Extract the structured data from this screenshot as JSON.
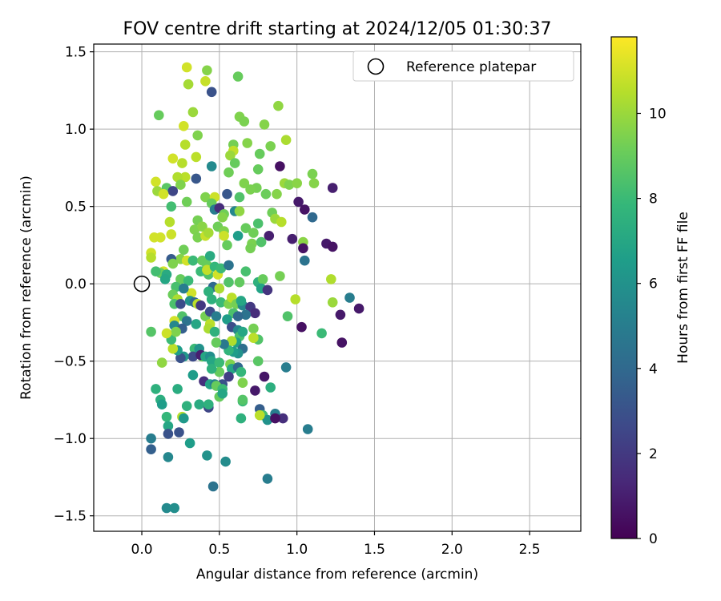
{
  "chart_data": {
    "type": "scatter",
    "title": "FOV centre drift starting at 2024/12/05 01:30:37",
    "xlabel": "Angular distance from reference (arcmin)",
    "ylabel": "Rotation from reference (arcmin)",
    "xlim": [
      -0.31,
      2.83
    ],
    "ylim": [
      -1.6,
      1.55
    ],
    "xticks": [
      0.0,
      0.5,
      1.0,
      1.5,
      2.0,
      2.5
    ],
    "xtick_labels": [
      "0.0",
      "0.5",
      "1.0",
      "1.5",
      "2.0",
      "2.5"
    ],
    "yticks": [
      -1.5,
      -1.0,
      -0.5,
      0.0,
      0.5,
      1.0,
      1.5
    ],
    "ytick_labels": [
      "−1.5",
      "−1.0",
      "−0.5",
      "0.0",
      "0.5",
      "1.0",
      "1.5"
    ],
    "grid": true,
    "legend": {
      "position": "top-right",
      "entries": [
        "Reference platepar"
      ]
    },
    "reference_point": {
      "x": 0.0,
      "y": 0.0,
      "marker": "open-circle"
    },
    "colorbar": {
      "label": "Hours from first FF file",
      "range": [
        0,
        11.8
      ],
      "ticks": [
        0,
        2,
        4,
        6,
        8,
        10
      ],
      "tick_labels": [
        "0",
        "2",
        "4",
        "6",
        "8",
        "10"
      ],
      "colormap": [
        "#440154",
        "#482878",
        "#3e4989",
        "#31688e",
        "#26828e",
        "#1f9e89",
        "#35b779",
        "#6ece58",
        "#b5de2b",
        "#fde725"
      ]
    },
    "points": [
      [
        0.29,
        1.4,
        11
      ],
      [
        0.42,
        1.38,
        9.6
      ],
      [
        0.41,
        1.31,
        10.8
      ],
      [
        0.3,
        1.29,
        10.2
      ],
      [
        0.62,
        1.34,
        9
      ],
      [
        0.45,
        1.24,
        3
      ],
      [
        0.11,
        1.09,
        9
      ],
      [
        0.33,
        1.11,
        10
      ],
      [
        0.88,
        1.15,
        9.8
      ],
      [
        0.63,
        1.08,
        9.5
      ],
      [
        0.66,
        1.05,
        9.4
      ],
      [
        0.79,
        1.03,
        9.6
      ],
      [
        0.27,
        1.02,
        11
      ],
      [
        0.36,
        0.96,
        9.5
      ],
      [
        0.59,
        0.9,
        9.3
      ],
      [
        0.68,
        0.91,
        9.6
      ],
      [
        0.93,
        0.93,
        10.3
      ],
      [
        0.28,
        0.9,
        10.5
      ],
      [
        0.83,
        0.89,
        9.4
      ],
      [
        0.59,
        0.86,
        10.7
      ],
      [
        0.76,
        0.84,
        9
      ],
      [
        0.2,
        0.81,
        11
      ],
      [
        0.35,
        0.82,
        10.6
      ],
      [
        0.26,
        0.78,
        10.5
      ],
      [
        0.57,
        0.83,
        10
      ],
      [
        0.6,
        0.78,
        9
      ],
      [
        0.89,
        0.76,
        0.5
      ],
      [
        0.45,
        0.76,
        5.6
      ],
      [
        0.56,
        0.72,
        9.2
      ],
      [
        0.75,
        0.74,
        9
      ],
      [
        0.28,
        0.69,
        10.6
      ],
      [
        0.09,
        0.66,
        11
      ],
      [
        0.35,
        0.68,
        3.2
      ],
      [
        0.23,
        0.69,
        10.4
      ],
      [
        0.1,
        0.6,
        10
      ],
      [
        0.25,
        0.64,
        9.5
      ],
      [
        0.16,
        0.62,
        8.7
      ],
      [
        0.2,
        0.6,
        2.5
      ],
      [
        0.14,
        0.58,
        11
      ],
      [
        0.55,
        0.58,
        3.2
      ],
      [
        0.41,
        0.56,
        9.5
      ],
      [
        0.47,
        0.56,
        10.9
      ],
      [
        0.45,
        0.52,
        9
      ],
      [
        0.29,
        0.53,
        9.2
      ],
      [
        0.63,
        0.56,
        8.5
      ],
      [
        0.74,
        0.62,
        9.3
      ],
      [
        0.66,
        0.65,
        9.5
      ],
      [
        0.7,
        0.61,
        9.4
      ],
      [
        0.8,
        0.58,
        9.1
      ],
      [
        0.87,
        0.58,
        9.6
      ],
      [
        0.92,
        0.65,
        10
      ],
      [
        0.95,
        0.64,
        9.5
      ],
      [
        1.0,
        0.65,
        9.7
      ],
      [
        1.01,
        0.53,
        0.8
      ],
      [
        1.05,
        0.48,
        0.6
      ],
      [
        1.1,
        0.71,
        9.4
      ],
      [
        1.11,
        0.65,
        9.6
      ],
      [
        1.23,
        0.62,
        1
      ],
      [
        1.1,
        0.43,
        4
      ],
      [
        0.19,
        0.5,
        8.2
      ],
      [
        0.18,
        0.4,
        10.5
      ],
      [
        0.19,
        0.32,
        10.9
      ],
      [
        0.08,
        0.3,
        11
      ],
      [
        0.12,
        0.3,
        11
      ],
      [
        0.06,
        0.2,
        11
      ],
      [
        0.06,
        0.17,
        10.5
      ],
      [
        0.27,
        0.22,
        9.2
      ],
      [
        0.25,
        0.16,
        9.6
      ],
      [
        0.36,
        0.41,
        9.3
      ],
      [
        0.34,
        0.35,
        9.5
      ],
      [
        0.39,
        0.37,
        9.7
      ],
      [
        0.47,
        0.48,
        5
      ],
      [
        0.5,
        0.49,
        1.5
      ],
      [
        0.53,
        0.45,
        9.2
      ],
      [
        0.6,
        0.47,
        5.5
      ],
      [
        0.63,
        0.47,
        9.8
      ],
      [
        0.49,
        0.37,
        9.2
      ],
      [
        0.52,
        0.43,
        9.6
      ],
      [
        0.53,
        0.34,
        9.5
      ],
      [
        0.53,
        0.31,
        10.9
      ],
      [
        0.62,
        0.31,
        6.5
      ],
      [
        0.67,
        0.36,
        9
      ],
      [
        0.72,
        0.33,
        9.2
      ],
      [
        0.75,
        0.39,
        8.4
      ],
      [
        0.84,
        0.46,
        9.2
      ],
      [
        0.86,
        0.42,
        10
      ],
      [
        0.9,
        0.4,
        10.5
      ],
      [
        0.82,
        0.31,
        1
      ],
      [
        0.71,
        0.26,
        9.4
      ],
      [
        0.77,
        0.27,
        8.5
      ],
      [
        0.7,
        0.23,
        9.3
      ],
      [
        0.97,
        0.29,
        1
      ],
      [
        1.04,
        0.27,
        9.7
      ],
      [
        1.04,
        0.23,
        0.6
      ],
      [
        1.05,
        0.15,
        4.5
      ],
      [
        1.19,
        0.26,
        0.8
      ],
      [
        1.23,
        0.24,
        0.6
      ],
      [
        0.36,
        0.3,
        9.4
      ],
      [
        0.41,
        0.31,
        10.8
      ],
      [
        0.43,
        0.33,
        10.2
      ],
      [
        0.55,
        0.25,
        9
      ],
      [
        0.29,
        0.15,
        11
      ],
      [
        0.33,
        0.15,
        8
      ],
      [
        0.39,
        0.15,
        9
      ],
      [
        0.44,
        0.18,
        7.2
      ],
      [
        0.42,
        0.12,
        9
      ],
      [
        0.38,
        0.08,
        8
      ],
      [
        0.43,
        0.06,
        8.5
      ],
      [
        0.42,
        0.09,
        10.7
      ],
      [
        0.47,
        0.11,
        7.8
      ],
      [
        0.49,
        0.06,
        11
      ],
      [
        0.51,
        0.1,
        8
      ],
      [
        0.56,
        0.12,
        4.5
      ],
      [
        0.67,
        0.08,
        8.3
      ],
      [
        0.19,
        0.16,
        3.4
      ],
      [
        0.2,
        0.13,
        9.5
      ],
      [
        0.14,
        0.08,
        11
      ],
      [
        0.12,
        0.07,
        9
      ],
      [
        0.09,
        0.08,
        8.2
      ],
      [
        0.16,
        0.06,
        7.2
      ],
      [
        0.15,
        0.03,
        7
      ],
      [
        0.25,
        0.03,
        9
      ],
      [
        0.3,
        0.02,
        8
      ],
      [
        0.22,
        -0.02,
        8.3
      ],
      [
        0.32,
        -0.06,
        11
      ],
      [
        0.27,
        -0.03,
        5
      ],
      [
        0.46,
        -0.02,
        4
      ],
      [
        0.5,
        -0.03,
        10.3
      ],
      [
        0.56,
        0.01,
        8.5
      ],
      [
        0.63,
        0.01,
        8.9
      ],
      [
        0.75,
        0.01,
        7.5
      ],
      [
        0.78,
        0.03,
        9
      ],
      [
        0.77,
        -0.03,
        6.8
      ],
      [
        0.81,
        -0.04,
        1.8
      ],
      [
        0.89,
        0.05,
        9.3
      ],
      [
        0.2,
        -0.07,
        9.1
      ],
      [
        0.23,
        -0.1,
        10.3
      ],
      [
        0.21,
        -0.13,
        8.4
      ],
      [
        0.25,
        -0.13,
        2.8
      ],
      [
        0.31,
        -0.11,
        6
      ],
      [
        0.34,
        -0.12,
        4
      ],
      [
        0.36,
        -0.13,
        10.6
      ],
      [
        0.43,
        -0.05,
        7.5
      ],
      [
        0.38,
        -0.14,
        2
      ],
      [
        0.45,
        -0.1,
        7.5
      ],
      [
        0.51,
        -0.12,
        8
      ],
      [
        0.56,
        -0.13,
        9.5
      ],
      [
        0.58,
        -0.09,
        10.6
      ],
      [
        0.61,
        -0.13,
        9.3
      ],
      [
        0.65,
        -0.14,
        5.5
      ],
      [
        0.64,
        -0.11,
        7
      ],
      [
        0.7,
        -0.15,
        2
      ],
      [
        0.73,
        -0.19,
        1.5
      ],
      [
        0.67,
        -0.2,
        4.5
      ],
      [
        0.72,
        -0.29,
        9.3
      ],
      [
        0.75,
        -0.36,
        8.5
      ],
      [
        0.72,
        -0.35,
        10.6
      ],
      [
        0.59,
        -0.19,
        8.4
      ],
      [
        0.62,
        -0.21,
        4
      ],
      [
        0.41,
        -0.21,
        9.3
      ],
      [
        0.44,
        -0.18,
        2.8
      ],
      [
        0.48,
        -0.21,
        5
      ],
      [
        0.26,
        -0.21,
        8.5
      ],
      [
        0.29,
        -0.24,
        4.5
      ],
      [
        0.21,
        -0.24,
        11
      ],
      [
        0.21,
        -0.27,
        5.5
      ],
      [
        0.26,
        -0.29,
        3.6
      ],
      [
        0.35,
        -0.26,
        7
      ],
      [
        0.44,
        -0.26,
        10.6
      ],
      [
        0.43,
        -0.29,
        10.3
      ],
      [
        0.47,
        -0.31,
        7.5
      ],
      [
        0.55,
        -0.23,
        6.5
      ],
      [
        0.58,
        -0.28,
        2.8
      ],
      [
        0.62,
        -0.3,
        5.5
      ],
      [
        0.63,
        -0.34,
        8.3
      ],
      [
        0.65,
        -0.31,
        7
      ],
      [
        0.61,
        -0.38,
        6.7
      ],
      [
        0.58,
        -0.37,
        10.4
      ],
      [
        0.65,
        -0.42,
        4.3
      ],
      [
        0.62,
        -0.45,
        6
      ],
      [
        0.59,
        -0.44,
        6.5
      ],
      [
        0.56,
        -0.43,
        7.7
      ],
      [
        0.53,
        -0.39,
        4.8
      ],
      [
        0.48,
        -0.38,
        9
      ],
      [
        0.39,
        -0.47,
        9
      ],
      [
        0.34,
        -0.42,
        8
      ],
      [
        0.37,
        -0.42,
        6
      ],
      [
        0.33,
        -0.47,
        2.7
      ],
      [
        0.38,
        -0.46,
        1
      ],
      [
        0.41,
        -0.47,
        7
      ],
      [
        0.44,
        -0.47,
        5.8
      ],
      [
        0.27,
        -0.47,
        6.2
      ],
      [
        0.25,
        -0.48,
        3
      ],
      [
        0.23,
        -0.43,
        6.5
      ],
      [
        0.2,
        -0.42,
        10.6
      ],
      [
        0.19,
        -0.36,
        8
      ],
      [
        0.22,
        -0.31,
        9.5
      ],
      [
        0.16,
        -0.32,
        10.9
      ],
      [
        0.06,
        -0.31,
        8.6
      ],
      [
        0.13,
        -0.51,
        9.8
      ],
      [
        0.45,
        -0.5,
        7
      ],
      [
        0.5,
        -0.51,
        8
      ],
      [
        0.57,
        -0.52,
        9.5
      ],
      [
        0.58,
        -0.55,
        7
      ],
      [
        0.56,
        -0.6,
        2.2
      ],
      [
        0.62,
        -0.54,
        4
      ],
      [
        0.64,
        -0.57,
        7.8
      ],
      [
        0.5,
        -0.57,
        9
      ],
      [
        0.45,
        -0.55,
        7.5
      ],
      [
        0.33,
        -0.59,
        6.5
      ],
      [
        0.4,
        -0.63,
        1.6
      ],
      [
        0.44,
        -0.65,
        6.8
      ],
      [
        0.47,
        -0.65,
        5.2
      ],
      [
        0.52,
        -0.65,
        3
      ],
      [
        0.48,
        -0.66,
        9
      ],
      [
        0.52,
        -0.68,
        8
      ],
      [
        0.5,
        -0.73,
        9
      ],
      [
        0.52,
        -0.71,
        7
      ],
      [
        0.65,
        -0.64,
        9.5
      ],
      [
        0.73,
        -0.69,
        0.8
      ],
      [
        0.79,
        -0.6,
        0.7
      ],
      [
        0.75,
        -0.5,
        8.7
      ],
      [
        0.83,
        -0.67,
        7.4
      ],
      [
        0.09,
        -0.68,
        7.5
      ],
      [
        0.23,
        -0.68,
        7.3
      ],
      [
        0.12,
        -0.75,
        7.4
      ],
      [
        0.13,
        -0.78,
        6.5
      ],
      [
        0.16,
        -0.86,
        7.8
      ],
      [
        0.26,
        -0.86,
        10.5
      ],
      [
        0.29,
        -0.79,
        7.5
      ],
      [
        0.37,
        -0.78,
        7.2
      ],
      [
        0.43,
        -0.8,
        2.5
      ],
      [
        0.43,
        -0.78,
        7.5
      ],
      [
        0.65,
        -0.76,
        8
      ],
      [
        0.65,
        -0.75,
        8.6
      ],
      [
        0.64,
        -0.87,
        7.5
      ],
      [
        0.76,
        -0.81,
        3.5
      ],
      [
        0.78,
        -0.85,
        8.2
      ],
      [
        0.81,
        -0.88,
        6
      ],
      [
        0.76,
        -0.85,
        10.6
      ],
      [
        0.86,
        -0.84,
        5
      ],
      [
        0.91,
        -0.87,
        1.6
      ],
      [
        0.86,
        -0.87,
        0.5
      ],
      [
        0.93,
        -0.54,
        5
      ],
      [
        0.94,
        -0.21,
        8.5
      ],
      [
        0.99,
        -0.1,
        10.5
      ],
      [
        1.03,
        -0.28,
        0.5
      ],
      [
        1.07,
        -0.94,
        5
      ],
      [
        1.16,
        -0.32,
        8
      ],
      [
        1.22,
        0.03,
        10.4
      ],
      [
        1.23,
        -0.12,
        10
      ],
      [
        1.28,
        -0.2,
        0.8
      ],
      [
        1.29,
        -0.38,
        0.6
      ],
      [
        1.34,
        -0.09,
        5
      ],
      [
        1.4,
        -0.16,
        0.8
      ],
      [
        0.17,
        -0.92,
        7
      ],
      [
        0.27,
        -0.87,
        6.3
      ],
      [
        0.06,
        -1.0,
        5
      ],
      [
        0.06,
        -1.07,
        3.6
      ],
      [
        0.17,
        -0.97,
        3
      ],
      [
        0.24,
        -0.96,
        3
      ],
      [
        0.31,
        -1.03,
        6.5
      ],
      [
        0.42,
        -1.11,
        6
      ],
      [
        0.54,
        -1.15,
        5.7
      ],
      [
        0.17,
        -1.12,
        5.5
      ],
      [
        0.46,
        -1.31,
        4.5
      ],
      [
        0.81,
        -1.26,
        5
      ],
      [
        0.16,
        -1.45,
        5.6
      ],
      [
        0.21,
        -1.45,
        5.8
      ]
    ]
  }
}
